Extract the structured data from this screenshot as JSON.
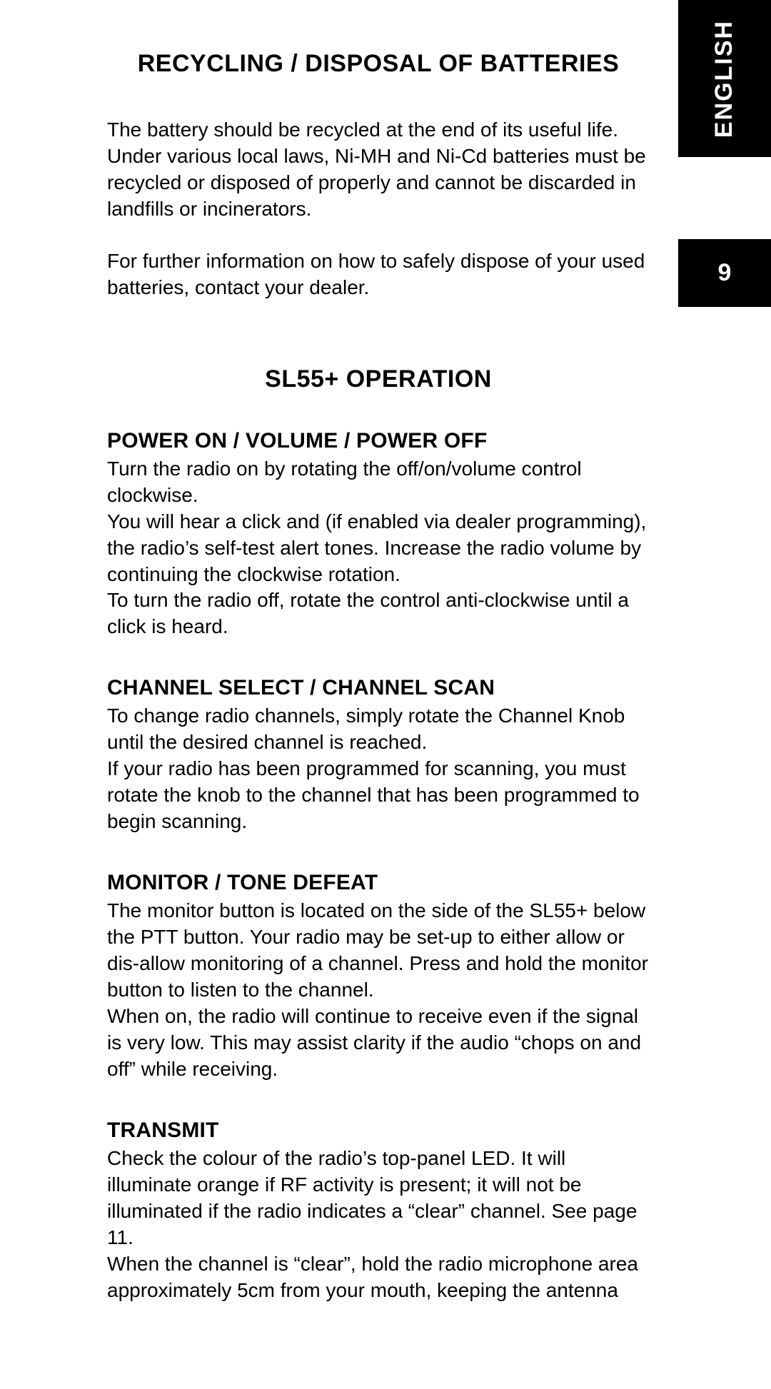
{
  "side": {
    "language": "ENGLISH",
    "page_number": "9"
  },
  "section1": {
    "title": "RECYCLING / DISPOSAL OF BATTERIES",
    "p1": "The battery should be recycled at the end of its useful life. Under various local laws, Ni-MH and Ni-Cd batteries must be recycled or disposed of properly and cannot be discarded in landfills or incinerators.",
    "p2": "For further information on how to safely dispose of your used batteries, contact your dealer."
  },
  "section2": {
    "title": "SL55+ OPERATION",
    "sub1": {
      "heading": "POWER ON / VOLUME / POWER OFF",
      "p1": "Turn the radio on by rotating the off/on/volume control clockwise.",
      "p2": "You will hear a click and (if enabled via dealer programming), the radio’s self-test alert tones. Increase the radio volume by continuing the clockwise rotation.",
      "p3": "To turn the radio off, rotate the control anti-clockwise until a click is heard."
    },
    "sub2": {
      "heading": "CHANNEL SELECT / CHANNEL SCAN",
      "p1": "To change radio channels, simply rotate the Channel Knob until the desired channel is reached.",
      "p2": "If your radio has been programmed for scanning, you must rotate the knob to the channel that has been programmed to begin scanning."
    },
    "sub3": {
      "heading": "MONITOR / TONE DEFEAT",
      "p1": "The monitor button is located on the side of the SL55+ below the PTT button.  Your radio may be set-up to either allow or dis-allow monitoring of a channel.  Press and hold the monitor button to listen to the channel.",
      "p2": "When on, the radio will continue to receive even if the signal is very low.  This may assist clarity if the audio “chops on and off” while receiving."
    },
    "sub4": {
      "heading": "TRANSMIT",
      "p1": "Check the colour of the radio’s top-panel LED.  It will illuminate orange if RF activity is present; it will not be illuminated if the radio indicates a “clear” channel. See page 11.",
      "p2": "When the channel is “clear”, hold the radio microphone area approximately 5cm from your mouth, keeping the antenna"
    }
  }
}
